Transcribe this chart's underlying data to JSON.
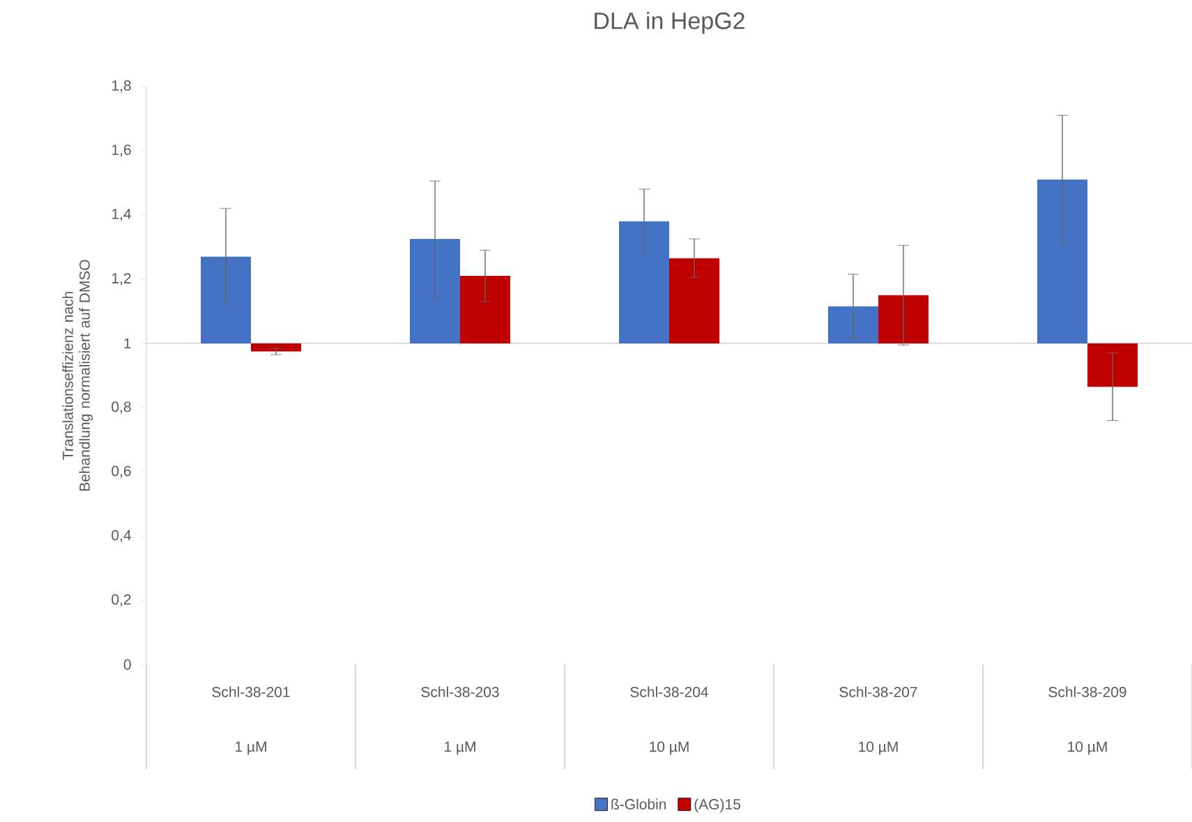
{
  "chart_data": {
    "type": "bar",
    "title": "DLA in HepG2",
    "ylabel": "Translationseffizienz nach Behandlung normalisiert auf DMSO",
    "categories": [
      "Schl-38-201",
      "Schl-38-203",
      "Schl-38-204",
      "Schl-38-207",
      "Schl-38-209"
    ],
    "annotations": [
      "1 µM",
      "1 µM",
      "10 µM",
      "10 µM",
      "10 µM"
    ],
    "series": [
      {
        "name": "ß-Globin",
        "color": "#4472c4",
        "values": [
          0.27,
          0.325,
          0.38,
          0.115,
          0.51
        ],
        "base": [
          1,
          1,
          1,
          1,
          1
        ],
        "errors": [
          0.15,
          0.18,
          0.1,
          0.1,
          0.2
        ]
      },
      {
        "name": "(AG)15",
        "color": "#c00000",
        "values": [
          -0.025,
          0.21,
          0.265,
          0.15,
          -0.135
        ],
        "base": [
          1,
          1,
          1,
          1,
          1
        ],
        "errors": [
          0.01,
          0.08,
          0.06,
          0.155,
          0.105
        ]
      }
    ],
    "ylim": [
      0,
      1.8
    ],
    "yticks": [
      0,
      {
        "value": 0.2,
        "label": "0,2"
      },
      {
        "value": 0.4,
        "label": "0,4"
      },
      {
        "value": 0.6,
        "label": "0,6"
      },
      {
        "value": 0.8,
        "label": "0,8"
      },
      1,
      {
        "value": 1.2,
        "label": "1,2"
      },
      {
        "value": 1.4,
        "label": "1,4"
      },
      {
        "value": 1.6,
        "label": "1,6"
      },
      {
        "value": 1.8,
        "label": "1,8"
      }
    ],
    "ref_lines": [
      {
        "axis": "y",
        "value": 1,
        "color": "#d9d9d9"
      }
    ],
    "legend": "bottom",
    "grid": false
  }
}
